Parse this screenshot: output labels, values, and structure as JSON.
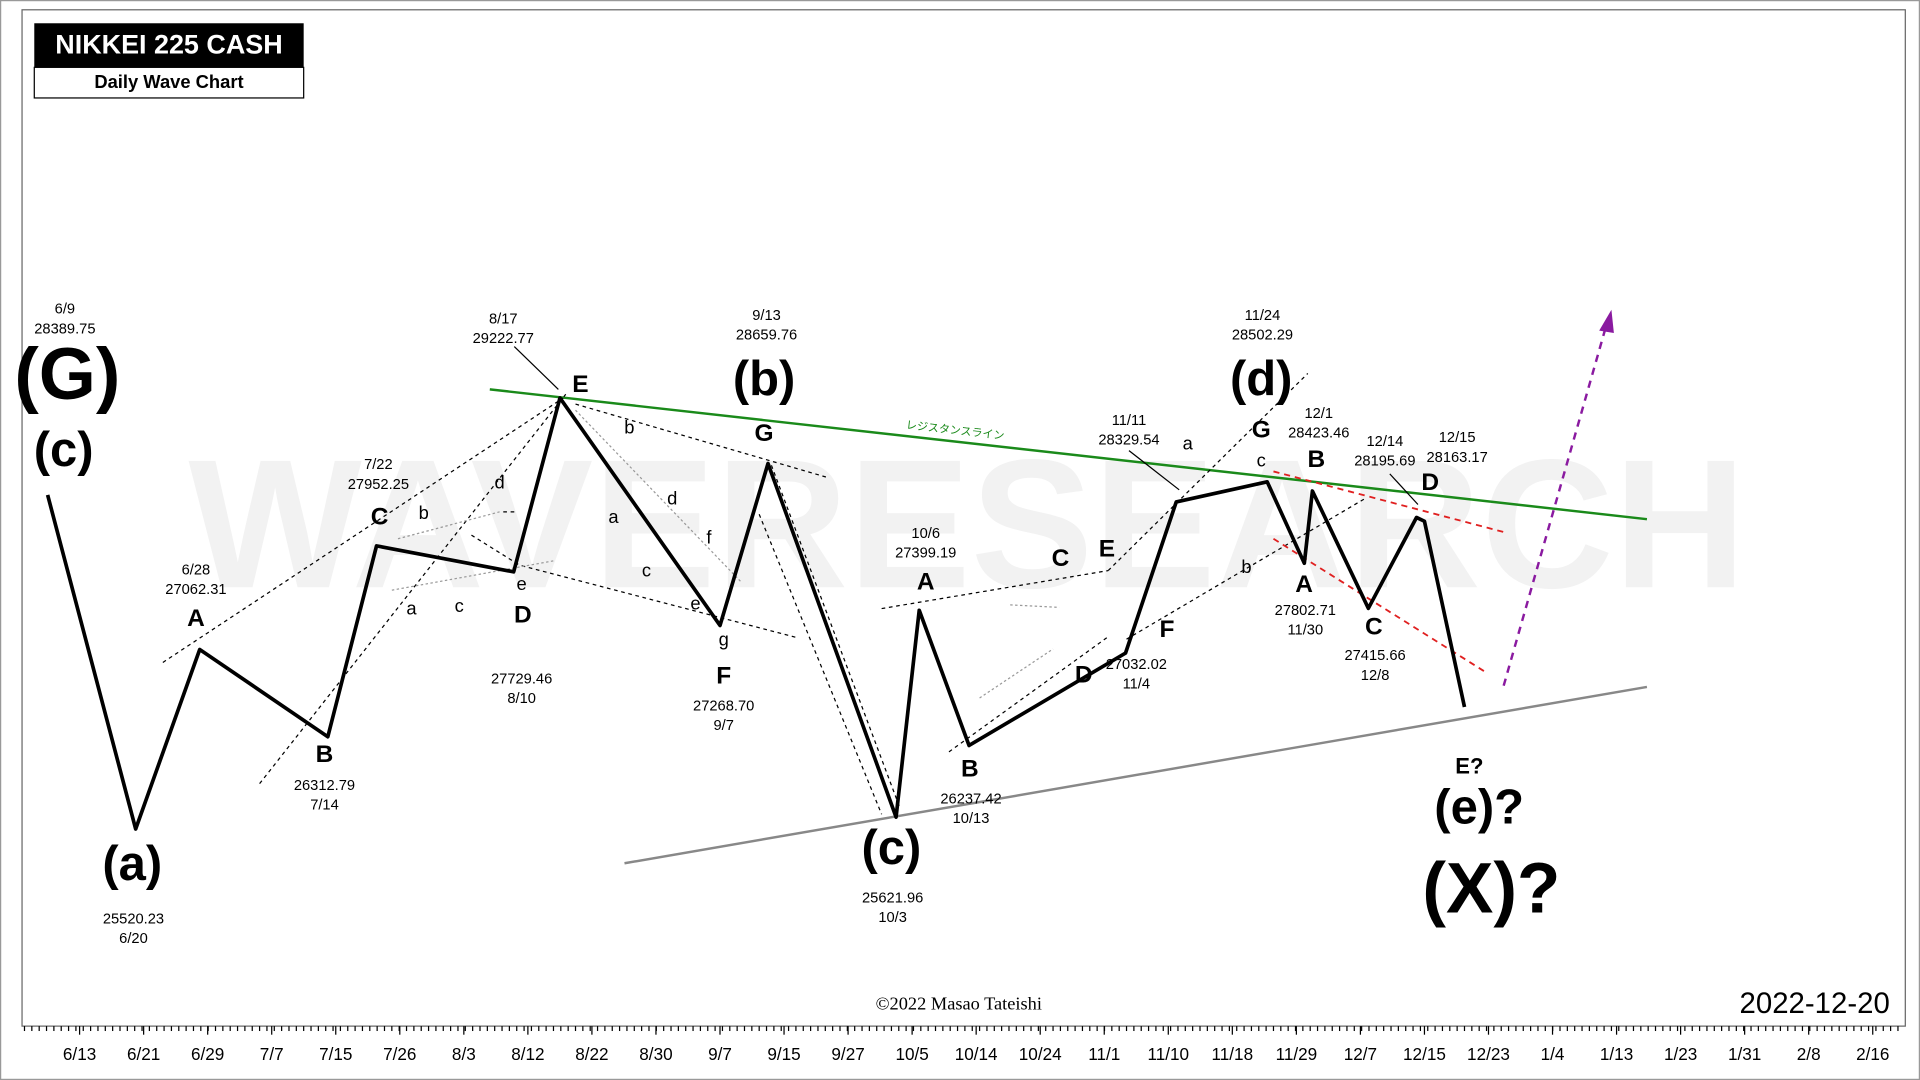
{
  "chart_data": {
    "type": "line",
    "title": "NIKKEI 225 CASH",
    "subtitle": "Daily Wave Chart",
    "watermark": "WAVERESEARCH",
    "credit": "©2022 Masao Tateishi",
    "date": "2022-12-20",
    "resistance_label": "レジスタンスライン",
    "color": "#000000",
    "x": [
      "6/9",
      "6/20",
      "6/28",
      "7/14",
      "7/22",
      "8/10",
      "8/17",
      "9/7",
      "9/13",
      "10/3",
      "10/6",
      "10/13",
      "11/4",
      "11/11",
      "11/24",
      "11/30",
      "12/1",
      "12/8",
      "12/14",
      "12/15",
      "12/20"
    ],
    "values": [
      28389.75,
      25520.23,
      27062.31,
      26312.79,
      27952.25,
      27729.46,
      29222.77,
      27268.7,
      28659.76,
      25621.96,
      27399.19,
      26237.42,
      27032.02,
      28329.54,
      28502.29,
      27802.71,
      28423.46,
      27415.66,
      28195.69,
      28163.17,
      26568.03
    ],
    "value_labels": [
      "28389.75",
      "25520.23",
      "27062.31",
      "26312.79",
      "27952.25",
      "27729.46",
      "29222.77",
      "27268.70",
      "28659.76",
      "25621.96",
      "27399.19",
      "26237.42",
      "27032.02",
      "28329.54",
      "28502.29",
      "27802.71",
      "28423.46",
      "27415.66",
      "28195.69",
      "28163.17",
      null
    ],
    "xticks": [
      "6/13",
      "6/21",
      "6/29",
      "7/7",
      "7/15",
      "7/26",
      "8/3",
      "8/12",
      "8/22",
      "8/30",
      "9/7",
      "9/15",
      "9/27",
      "10/5",
      "10/14",
      "10/24",
      "11/1",
      "11/10",
      "11/18",
      "11/29",
      "12/7",
      "12/15",
      "12/23",
      "1/4",
      "1/13",
      "1/23",
      "1/31",
      "2/8",
      "2/16"
    ],
    "annotations": [
      "(G)",
      "(c)",
      "(a)",
      "A",
      "B",
      "C",
      "D",
      "E",
      "(b)",
      "G",
      "F",
      "(c)",
      "A",
      "B",
      "C",
      "D",
      "E",
      "F",
      "(d)",
      "G",
      "B",
      "A",
      "C",
      "D",
      "E?",
      "(e)?",
      "(X)?",
      "a",
      "b",
      "c",
      "d",
      "e",
      "b",
      "a",
      "c",
      "d",
      "e",
      "f",
      "g",
      "c",
      "a",
      "b"
    ]
  }
}
